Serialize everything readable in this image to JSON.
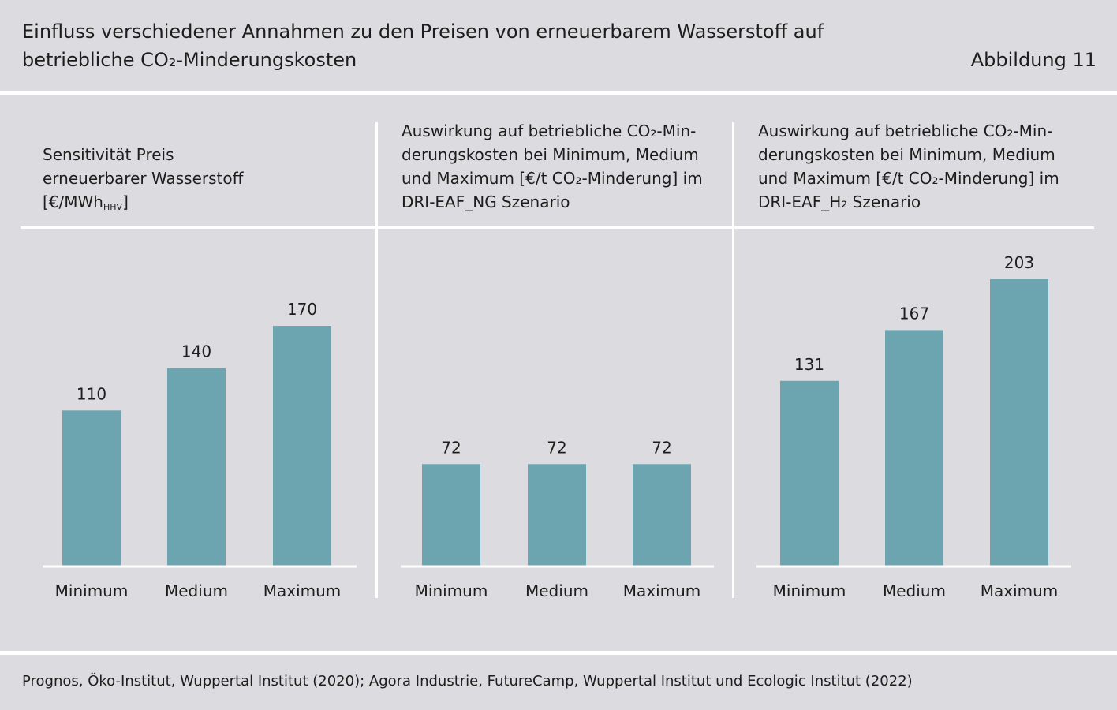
{
  "header": {
    "title_line1": "Einfluss verschiedener Annahmen zu den Preisen von erneuerbarem Wasserstoff auf",
    "title_line2": "betriebliche CO₂-Minderungskosten",
    "figure_label": "Abbildung 11"
  },
  "panels": [
    {
      "heading_lines": [
        "Sensitivität Preis",
        "erneuerbarer Wasserstoff"
      ],
      "unit_main": "[€/MWh",
      "unit_sub": "HHV",
      "unit_close": "]"
    },
    {
      "heading_lines": [
        "Auswirkung auf betriebliche CO₂-Min-",
        "derungskosten bei Minimum, Medium",
        "und Maximum [€/t CO₂-Minderung] im",
        "DRI-EAF_NG Szenario"
      ]
    },
    {
      "heading_lines": [
        "Auswirkung auf betriebliche CO₂-Min-",
        "derungskosten bei Minimum, Medium",
        "und Maximum [€/t CO₂-Minderung] im",
        "DRI-EAF_H₂ Szenario"
      ]
    }
  ],
  "chart_data": [
    {
      "type": "bar",
      "categories": [
        "Minimum",
        "Medium",
        "Maximum"
      ],
      "values": [
        110,
        140,
        170
      ],
      "title": "Sensitivität Preis erneuerbarer Wasserstoff [€/MWhHHV]",
      "ylim": [
        0,
        220
      ],
      "grid": false,
      "color": "#6ca5b0"
    },
    {
      "type": "bar",
      "categories": [
        "Minimum",
        "Medium",
        "Maximum"
      ],
      "values": [
        72,
        72,
        72
      ],
      "title": "Auswirkung auf betriebliche CO₂-Minderungskosten bei Minimum, Medium und Maximum [€/t CO₂-Minderung] im DRI-EAF_NG Szenario",
      "ylim": [
        0,
        220
      ],
      "grid": false,
      "color": "#6ca5b0"
    },
    {
      "type": "bar",
      "categories": [
        "Minimum",
        "Medium",
        "Maximum"
      ],
      "values": [
        131,
        167,
        203
      ],
      "title": "Auswirkung auf betriebliche CO₂-Minderungskosten bei Minimum, Medium und Maximum [€/t CO₂-Minderung] im DRI-EAF_H₂ Szenario",
      "ylim": [
        0,
        220
      ],
      "grid": false,
      "color": "#6ca5b0"
    }
  ],
  "footer": {
    "source": "Prognos, Öko-Institut, Wuppertal Institut (2020); Agora Industrie, FutureCamp, Wuppertal Institut und Ecologic Institut (2022)"
  }
}
